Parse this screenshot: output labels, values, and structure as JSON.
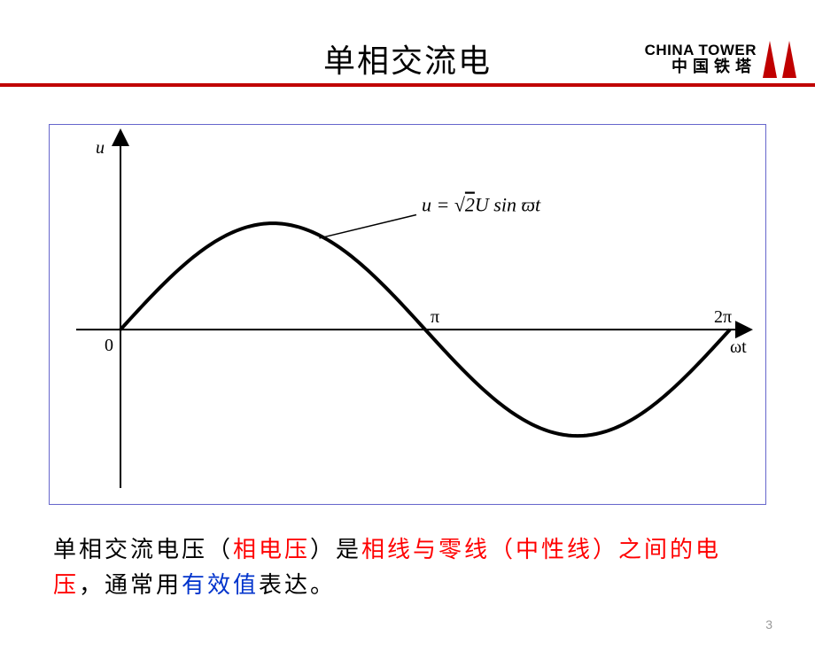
{
  "header": {
    "title": "单相交流电",
    "logo_en": "CHINA TOWER",
    "logo_cn": "中国铁塔",
    "logo_icon_color": "#c00000"
  },
  "accent_color": "#c00000",
  "chart": {
    "type": "line",
    "frame_border_color": "#6666cc",
    "background_color": "#ffffff",
    "axis_color": "#000000",
    "curve_color": "#000000",
    "curve_width": 4.0,
    "y_axis_label": "u",
    "x_axis_label": "ωt",
    "origin_label": "0",
    "tick_labels": [
      "π",
      "2π"
    ],
    "formula": "u = √2U sin ϖt",
    "formula_fontsize": 22,
    "label_fontsize": 20,
    "axis_label_font": "italic serif",
    "xlim": [
      0,
      6.2832
    ],
    "ylim": [
      -1.05,
      1.05
    ],
    "amplitude": 1.0,
    "sample_points": 200,
    "leader_line": {
      "from_x": 2.05,
      "from_y": 0.86,
      "to_x": 3.05,
      "to_y": 1.08
    }
  },
  "caption": {
    "parts": [
      {
        "text": "单相交流电压（",
        "cls": ""
      },
      {
        "text": "相电压",
        "cls": "red"
      },
      {
        "text": "）是",
        "cls": ""
      },
      {
        "text": "相线与零线（中性线）之间的电压",
        "cls": "red"
      },
      {
        "text": "，通常用",
        "cls": ""
      },
      {
        "text": "有效值",
        "cls": "blue"
      },
      {
        "text": "表达。",
        "cls": ""
      }
    ],
    "text_color": "#000000",
    "red_color": "#ff0000",
    "blue_color": "#0033cc",
    "fontsize": 26
  },
  "page_number": "3"
}
